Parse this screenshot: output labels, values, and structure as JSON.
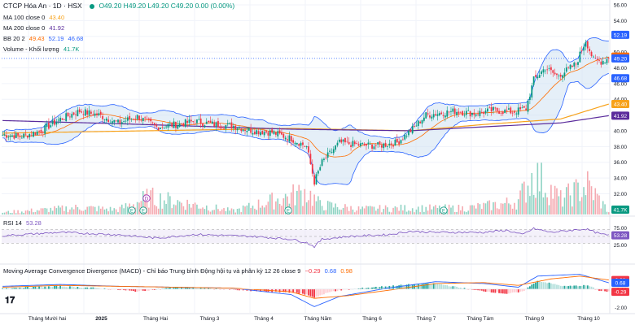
{
  "header": {
    "symbol": "CTCP Hóa An · 1D · HSX",
    "ohlc": "O49.20 H49.20 L49.20 C49.20 0.00 (0.00%)",
    "ma100_label": "MA 100 close 0",
    "ma100_value": "43.40",
    "ma200_label": "MA 200 close 0",
    "ma200_value": "41.92",
    "bb_label": "BB 20 2",
    "bb_values": [
      "49.43",
      "52.19",
      "46.68"
    ],
    "volume_label": "Volume - Khối lượng",
    "volume_value": "41.7K",
    "rsi_label": "RSI 14",
    "rsi_value": "53.28",
    "macd_label": "Moving Average Convergence Divergence (MACD) - Chỉ báo Trung bình Động hội tụ và phân kỳ 12 26 close 9",
    "macd_values": [
      "−0.29",
      "0.68",
      "0.98"
    ]
  },
  "price_boxes": [
    {
      "value": "52.19",
      "color": "#2962ff",
      "y": 52.19
    },
    {
      "value": "49.43",
      "color": "#ff6d00",
      "y": 49.43
    },
    {
      "value": "49.20",
      "color": "#2962ff",
      "y": 49.2
    },
    {
      "value": "46.68",
      "color": "#2962ff",
      "y": 46.68
    },
    {
      "value": "43.40",
      "color": "#f7a21b",
      "y": 43.4
    },
    {
      "value": "41.92",
      "color": "#5b2c9c",
      "y": 41.92
    }
  ],
  "volume_box": "41.7K",
  "rsi_box": "53.28",
  "macd_boxes": [
    {
      "value": "0.98",
      "color": "#f23645",
      "y": 0.98
    },
    {
      "value": "0.68",
      "color": "#2962ff",
      "y": 0.68
    },
    {
      "value": "-0.29",
      "color": "#f23645",
      "y": -0.29
    }
  ],
  "colors": {
    "up": "#089981",
    "down": "#f23645",
    "bb": "#2962ff",
    "bb_fill": "#cfe2f3",
    "ma100": "#f7a21b",
    "ma200": "#5b2c9c",
    "rsi": "#7e57c2",
    "macd": "#2962ff",
    "signal": "#ff6d00"
  },
  "icons": [
    "tradingview-logo",
    "live-dot-icon",
    "event-e-icon",
    "event-d-icon"
  ],
  "chart_data": {
    "type": "candlestick",
    "price_axis": {
      "ticks": [
        "56.00",
        "54.00",
        "52.00",
        "50.00",
        "48.00",
        "46.00",
        "44.00",
        "42.00",
        "40.00",
        "38.00",
        "36.00",
        "34.00",
        "32.00"
      ],
      "ylim": [
        30.6,
        56.0
      ]
    },
    "rsi_axis": {
      "ticks": [
        "75.00",
        "50.00",
        "25.00"
      ],
      "bands": [
        70,
        30
      ]
    },
    "macd_axis": {
      "ticks": [
        "0.00",
        "-2.00"
      ]
    },
    "x_labels": [
      "Tháng Mười hai",
      "2025",
      "Tháng Hai",
      "Tháng 3",
      "Tháng 4",
      "Tháng Năm",
      "Tháng 6",
      "Tháng 7",
      "Tháng Tám",
      "Tháng 9",
      "Tháng 10"
    ],
    "price_anchors": [
      [
        0,
        39.5
      ],
      [
        10,
        39.3
      ],
      [
        20,
        40.0
      ],
      [
        30,
        41.5
      ],
      [
        40,
        42.5
      ],
      [
        50,
        42.0
      ],
      [
        60,
        41.0
      ],
      [
        70,
        41.8
      ],
      [
        80,
        40.5
      ],
      [
        90,
        40.8
      ],
      [
        100,
        41.2
      ],
      [
        110,
        40.8
      ],
      [
        120,
        40.6
      ],
      [
        130,
        40.0
      ],
      [
        140,
        39.8
      ],
      [
        150,
        39.0
      ],
      [
        158,
        38.0
      ],
      [
        162,
        33.5
      ],
      [
        166,
        36.0
      ],
      [
        175,
        38.5
      ],
      [
        185,
        38.2
      ],
      [
        195,
        38.1
      ],
      [
        205,
        38.5
      ],
      [
        212,
        40.0
      ],
      [
        220,
        42.0
      ],
      [
        235,
        42.5
      ],
      [
        245,
        42.2
      ],
      [
        255,
        42.6
      ],
      [
        265,
        42.4
      ],
      [
        272,
        42.8
      ],
      [
        276,
        46.5
      ],
      [
        282,
        48.0
      ],
      [
        288,
        47.0
      ],
      [
        292,
        47.5
      ],
      [
        298,
        48.5
      ],
      [
        303,
        51.5
      ],
      [
        307,
        49.0
      ],
      [
        311,
        48.8
      ],
      [
        315,
        49.2
      ]
    ],
    "volume_anchors": [
      [
        0,
        3
      ],
      [
        40,
        10
      ],
      [
        60,
        7
      ],
      [
        76,
        25
      ],
      [
        100,
        14
      ],
      [
        120,
        5
      ],
      [
        158,
        33
      ],
      [
        165,
        14
      ],
      [
        185,
        8
      ],
      [
        210,
        9
      ],
      [
        240,
        9
      ],
      [
        260,
        15
      ],
      [
        268,
        20
      ],
      [
        276,
        58
      ],
      [
        290,
        22
      ],
      [
        304,
        42
      ],
      [
        315,
        4
      ]
    ],
    "rsi_anchors": [
      [
        0,
        52
      ],
      [
        30,
        62
      ],
      [
        60,
        55
      ],
      [
        80,
        45
      ],
      [
        100,
        56
      ],
      [
        130,
        50
      ],
      [
        150,
        42
      ],
      [
        158,
        32
      ],
      [
        162,
        20
      ],
      [
        166,
        42
      ],
      [
        180,
        50
      ],
      [
        200,
        55
      ],
      [
        212,
        65
      ],
      [
        225,
        62
      ],
      [
        250,
        62
      ],
      [
        262,
        68
      ],
      [
        270,
        55
      ],
      [
        276,
        73
      ],
      [
        285,
        62
      ],
      [
        303,
        72
      ],
      [
        310,
        58
      ],
      [
        315,
        53
      ]
    ],
    "macd_hist_anchors": [
      [
        0,
        0.1
      ],
      [
        30,
        0.3
      ],
      [
        50,
        0.1
      ],
      [
        70,
        -0.25
      ],
      [
        90,
        0.2
      ],
      [
        110,
        0.05
      ],
      [
        130,
        -0.2
      ],
      [
        150,
        -0.35
      ],
      [
        158,
        -0.6
      ],
      [
        162,
        -0.9
      ],
      [
        172,
        -0.2
      ],
      [
        190,
        0.15
      ],
      [
        212,
        0.5
      ],
      [
        225,
        0.6
      ],
      [
        245,
        -0.1
      ],
      [
        262,
        -0.5
      ],
      [
        270,
        -0.3
      ],
      [
        278,
        0.9
      ],
      [
        292,
        0.3
      ],
      [
        304,
        0.4
      ],
      [
        310,
        -0.15
      ],
      [
        315,
        -0.29
      ]
    ],
    "macd_line_anchors": [
      [
        0,
        0.3
      ],
      [
        30,
        0.5
      ],
      [
        60,
        0.3
      ],
      [
        90,
        0.2
      ],
      [
        120,
        0.1
      ],
      [
        150,
        -0.6
      ],
      [
        162,
        -1.9
      ],
      [
        175,
        -0.8
      ],
      [
        200,
        0.1
      ],
      [
        225,
        0.8
      ],
      [
        250,
        0.6
      ],
      [
        268,
        0.2
      ],
      [
        278,
        1.4
      ],
      [
        300,
        1.6
      ],
      [
        315,
        0.68
      ]
    ],
    "signal_line_anchors": [
      [
        0,
        0.2
      ],
      [
        30,
        0.4
      ],
      [
        60,
        0.3
      ],
      [
        90,
        0.2
      ],
      [
        120,
        0.1
      ],
      [
        150,
        -0.3
      ],
      [
        162,
        -1.0
      ],
      [
        180,
        -0.7
      ],
      [
        205,
        0.0
      ],
      [
        225,
        0.6
      ],
      [
        250,
        0.7
      ],
      [
        268,
        0.4
      ],
      [
        285,
        1.1
      ],
      [
        300,
        1.4
      ],
      [
        315,
        0.98
      ]
    ]
  }
}
